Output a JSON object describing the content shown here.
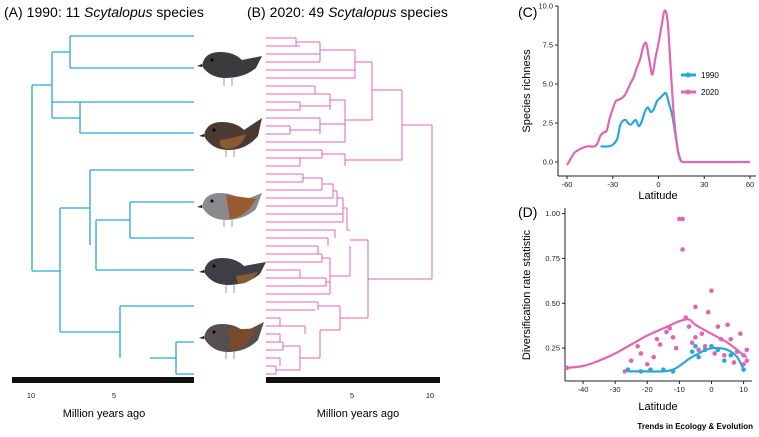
{
  "panelA": {
    "label": "(A)",
    "title_prefix": "1990: 11 ",
    "title_italic": "Scytalopus",
    "title_suffix": " species",
    "xlabel": "Million years ago",
    "ticks": [
      "10",
      "5"
    ],
    "color": "#2aa6d9"
  },
  "panelB": {
    "label": "(B)",
    "title_prefix": "2020: 49 ",
    "title_italic": "Scytalopus",
    "title_suffix": " species",
    "xlabel": "Million years ago",
    "ticks": [
      "5",
      "10"
    ],
    "color": "#e066b0"
  },
  "panelC": {
    "label": "(C)"
  },
  "panelD": {
    "label": "(D)"
  },
  "credit": "Trends in Ecology & Evolution",
  "chart_data": [
    {
      "type": "line",
      "panel": "C",
      "xlabel": "Latitude",
      "ylabel": "Species richness",
      "xlim": [
        -60,
        60
      ],
      "ylim": [
        0,
        10
      ],
      "xticks": [
        -60,
        -30,
        0,
        30,
        60
      ],
      "yticks": [
        0.0,
        2.5,
        5.0,
        7.5,
        10.0
      ],
      "ytick_labels": [
        "0.0",
        "2.5",
        "5.0",
        "7.5",
        "10.0"
      ],
      "legend_position": "right",
      "series": [
        {
          "name": "1990",
          "color": "#2aa6d9",
          "x": [
            -38,
            -33,
            -30,
            -27,
            -25,
            -22,
            -20,
            -18,
            -15,
            -13,
            -11,
            -9,
            -7,
            -5,
            -3,
            -1,
            1,
            3,
            5,
            7,
            9,
            11,
            13,
            15
          ],
          "y": [
            1.0,
            1.0,
            1.1,
            1.5,
            2.4,
            2.7,
            2.5,
            2.4,
            2.7,
            2.3,
            2.6,
            3.2,
            3.5,
            3.2,
            3.4,
            3.9,
            4.1,
            4.3,
            4.4,
            3.7,
            3.0,
            1.8,
            0.6,
            0.0
          ]
        },
        {
          "name": "2020",
          "color": "#e066b0",
          "x": [
            -60,
            -57,
            -55,
            -52,
            -50,
            -47,
            -45,
            -42,
            -40,
            -38,
            -36,
            -34,
            -32,
            -30,
            -28,
            -26,
            -24,
            -22,
            -20,
            -18,
            -16,
            -14,
            -12,
            -10,
            -8,
            -6,
            -4,
            -2,
            0,
            2,
            4,
            6,
            8,
            10,
            12,
            14,
            16,
            18,
            20,
            30,
            40,
            50,
            60
          ],
          "y": [
            -0.2,
            0.3,
            0.6,
            0.8,
            0.9,
            1.0,
            1.0,
            1.0,
            1.2,
            1.7,
            1.9,
            2.0,
            2.8,
            3.4,
            3.9,
            4.0,
            4.1,
            4.3,
            4.7,
            5.1,
            5.5,
            6.1,
            6.6,
            7.4,
            7.6,
            6.5,
            5.6,
            6.7,
            7.6,
            8.7,
            9.7,
            9.0,
            6.0,
            3.0,
            1.2,
            0.2,
            0.0,
            0.0,
            0.0,
            0.0,
            0.0,
            0.0,
            0.0
          ]
        }
      ]
    },
    {
      "type": "scatter",
      "panel": "D",
      "xlabel": "Latitude",
      "ylabel": "Diversification rate statistic",
      "xlim": [
        -45,
        12
      ],
      "ylim": [
        0.1,
        1.02
      ],
      "xticks": [
        -40,
        -30,
        -20,
        -10,
        0,
        10
      ],
      "yticks": [
        0.25,
        0.5,
        0.75,
        1.0
      ],
      "ytick_labels": [
        "0.25",
        "0.50",
        "0.75",
        "1.00"
      ],
      "series": [
        {
          "name": "2020",
          "color": "#e066b0",
          "points": [
            [
              -45,
              0.14
            ],
            [
              -27,
              0.12
            ],
            [
              -25,
              0.18
            ],
            [
              -23,
              0.26
            ],
            [
              -22,
              0.22
            ],
            [
              -20,
              0.16
            ],
            [
              -18,
              0.2
            ],
            [
              -17,
              0.3
            ],
            [
              -16,
              0.27
            ],
            [
              -14,
              0.34
            ],
            [
              -13,
              0.36
            ],
            [
              -12,
              0.31
            ],
            [
              -11,
              0.25
            ],
            [
              -10,
              0.97
            ],
            [
              -9,
              0.97
            ],
            [
              -9,
              0.8
            ],
            [
              -8,
              0.42
            ],
            [
              -7,
              0.37
            ],
            [
              -6,
              0.28
            ],
            [
              -5,
              0.48
            ],
            [
              -5,
              0.31
            ],
            [
              -4,
              0.24
            ],
            [
              -3,
              0.33
            ],
            [
              -2,
              0.26
            ],
            [
              -1,
              0.45
            ],
            [
              0,
              0.57
            ],
            [
              1,
              0.22
            ],
            [
              2,
              0.37
            ],
            [
              3,
              0.3
            ],
            [
              4,
              0.21
            ],
            [
              5,
              0.38
            ],
            [
              6,
              0.3
            ],
            [
              7,
              0.17
            ],
            [
              8,
              0.23
            ],
            [
              9,
              0.33
            ],
            [
              10,
              0.21
            ],
            [
              10,
              0.16
            ],
            [
              11,
              0.24
            ],
            [
              11,
              0.18
            ]
          ],
          "curve": [
            [
              -45,
              0.14
            ],
            [
              -40,
              0.15
            ],
            [
              -35,
              0.18
            ],
            [
              -30,
              0.22
            ],
            [
              -25,
              0.27
            ],
            [
              -20,
              0.32
            ],
            [
              -15,
              0.36
            ],
            [
              -10,
              0.4
            ],
            [
              -7,
              0.41
            ],
            [
              -5,
              0.38
            ],
            [
              0,
              0.33
            ],
            [
              5,
              0.28
            ],
            [
              8,
              0.24
            ],
            [
              10,
              0.21
            ],
            [
              11,
              0.2
            ]
          ]
        },
        {
          "name": "1990",
          "color": "#2aa6d9",
          "points": [
            [
              -26,
              0.13
            ],
            [
              -22,
              0.12
            ],
            [
              -19,
              0.13
            ],
            [
              -15,
              0.13
            ],
            [
              -12,
              0.12
            ],
            [
              -6,
              0.23
            ],
            [
              -5,
              0.26
            ],
            [
              -4,
              0.2
            ],
            [
              -2,
              0.24
            ],
            [
              0,
              0.26
            ],
            [
              2,
              0.24
            ],
            [
              4,
              0.18
            ],
            [
              6,
              0.21
            ],
            [
              10,
              0.13
            ]
          ],
          "curve": [
            [
              -26,
              0.12
            ],
            [
              -20,
              0.12
            ],
            [
              -15,
              0.12
            ],
            [
              -12,
              0.13
            ],
            [
              -10,
              0.15
            ],
            [
              -7,
              0.19
            ],
            [
              -4,
              0.22
            ],
            [
              -1,
              0.245
            ],
            [
              2,
              0.25
            ],
            [
              5,
              0.24
            ],
            [
              8,
              0.2
            ],
            [
              10,
              0.13
            ]
          ]
        }
      ]
    }
  ]
}
